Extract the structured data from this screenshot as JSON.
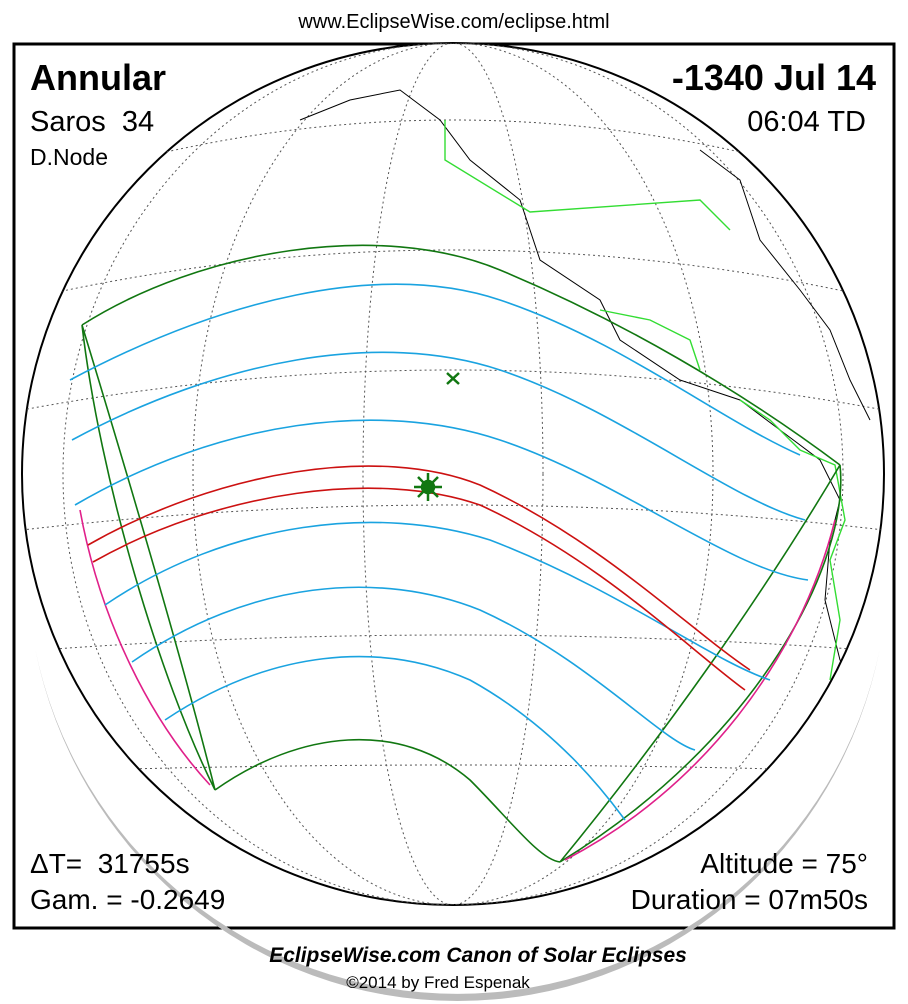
{
  "header": {
    "url": "www.EclipseWise.com/eclipse.html"
  },
  "map": {
    "eclipse_type": "Annular",
    "date": "-1340 Jul 14",
    "saros": "Saros  34",
    "time": "06:04 TD",
    "node": "D.Node",
    "delta_t": "ΔT=  31755s",
    "gamma": "Gam. = -0.2649",
    "altitude": "Altitude = 75°",
    "duration": "Duration = 07m50s"
  },
  "footer": {
    "title": "EclipseWise.com Canon of Solar Eclipses",
    "copyright": "©2014 by Fred Espenak"
  }
}
